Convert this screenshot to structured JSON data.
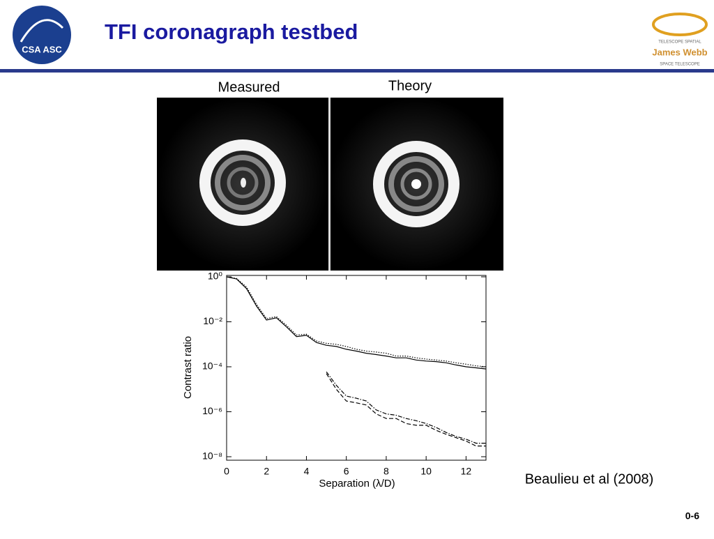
{
  "header": {
    "title": "TFI coronagraph testbed",
    "left_logo_text": "CSA ASC",
    "right_logo_top": "TELESCOPE SPATIAL",
    "right_logo_name": "James Webb",
    "right_logo_bottom": "SPACE TELESCOPE"
  },
  "images": {
    "measured_label": "Measured",
    "theory_label": "Theory"
  },
  "chart_data": {
    "type": "line",
    "x_label": "Separation (λ/D)",
    "y_label": "Contrast ratio",
    "y_scale": "log",
    "xlim": [
      0,
      13
    ],
    "ylim": [
      1e-08,
      1
    ],
    "xticks": [
      0,
      2,
      4,
      6,
      8,
      10,
      12
    ],
    "yticks": [
      {
        "value": 1,
        "label": "10⁰"
      },
      {
        "value": 0.01,
        "label": "10⁻²"
      },
      {
        "value": 0.0001,
        "label": "10⁻⁴"
      },
      {
        "value": 1e-06,
        "label": "10⁻⁶"
      },
      {
        "value": 1e-08,
        "label": "10⁻⁸"
      }
    ],
    "x": [
      0,
      0.5,
      1,
      1.5,
      2,
      2.5,
      3,
      3.5,
      4,
      4.5,
      5,
      5.5,
      6,
      6.5,
      7,
      7.5,
      8,
      8.5,
      9,
      9.5,
      10,
      10.5,
      11,
      11.5,
      12,
      12.5,
      13
    ],
    "series": [
      {
        "color": "#000000",
        "dash": "solid",
        "values": [
          1,
          0.8,
          0.3,
          0.05,
          0.012,
          0.015,
          0.006,
          0.0022,
          0.0025,
          0.0012,
          0.0009,
          0.0008,
          0.0006,
          0.0005,
          0.0004,
          0.00035,
          0.0003,
          0.00025,
          0.00025,
          0.0002,
          0.00018,
          0.00017,
          0.00015,
          0.00012,
          0.0001,
          9e-05,
          8e-05
        ]
      },
      {
        "color": "#000000",
        "dash": "dotted",
        "values": [
          1,
          0.85,
          0.35,
          0.06,
          0.014,
          0.017,
          0.007,
          0.0026,
          0.0028,
          0.0014,
          0.0011,
          0.001,
          0.0008,
          0.0006,
          0.0005,
          0.00045,
          0.0004,
          0.0003,
          0.0003,
          0.00025,
          0.00022,
          0.0002,
          0.00018,
          0.00015,
          0.00013,
          0.00011,
          0.0001
        ]
      },
      {
        "color": "#000000",
        "dash": "dashed",
        "values": [
          null,
          null,
          null,
          null,
          null,
          null,
          null,
          null,
          null,
          null,
          5e-05,
          1e-05,
          3e-06,
          2.5e-06,
          2e-06,
          8e-07,
          5e-07,
          5e-07,
          3e-07,
          2.5e-07,
          2.5e-07,
          1.5e-07,
          1e-07,
          7e-08,
          5e-08,
          3e-08,
          3e-08
        ]
      },
      {
        "color": "#000000",
        "dash": "dashdot",
        "values": [
          null,
          null,
          null,
          null,
          null,
          null,
          null,
          null,
          null,
          null,
          6e-05,
          1.5e-05,
          5e-06,
          4e-06,
          3e-06,
          1.2e-06,
          8e-07,
          7e-07,
          5e-07,
          4e-07,
          3e-07,
          2e-07,
          1.2e-07,
          8e-08,
          6e-08,
          4e-08,
          4e-08
        ]
      }
    ]
  },
  "source": "Beaulieu et al (2008)",
  "page_number": "0-6"
}
